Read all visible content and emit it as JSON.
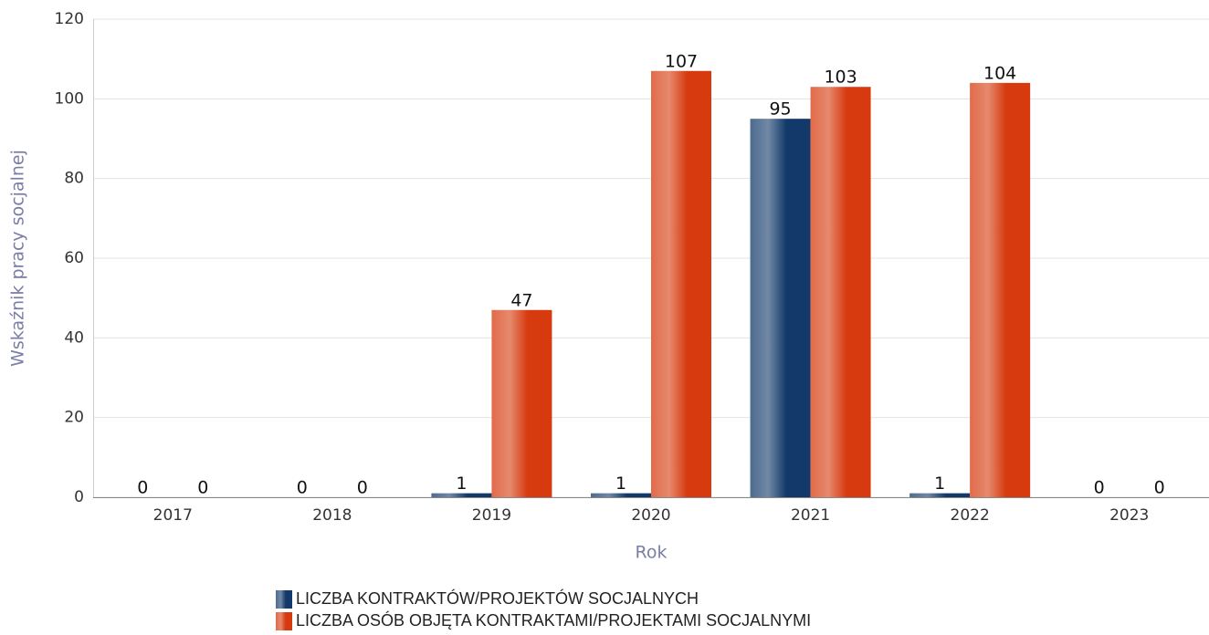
{
  "chart_data": {
    "type": "bar",
    "categories": [
      "2017",
      "2018",
      "2019",
      "2020",
      "2021",
      "2022",
      "2023"
    ],
    "series": [
      {
        "name": "LICZBA KONTRAKTÓW/PROJEKTÓW SOCJALNYCH",
        "color": "#12396a",
        "values": [
          0,
          0,
          1,
          1,
          95,
          1,
          0
        ]
      },
      {
        "name": "LICZBA OSÓB OBJĘTA KONTRAKTAMI/PROJEKTAMI SOCJALNYMI",
        "color": "#d63a0e",
        "values": [
          0,
          0,
          47,
          107,
          103,
          104,
          0
        ]
      }
    ],
    "x_label": "Rok",
    "y_label": "Wskaźnik pracy socjalnej",
    "ylim": [
      0,
      120
    ],
    "yticks": [
      0,
      20,
      40,
      60,
      80,
      100,
      120
    ],
    "grid": true,
    "legend": "bottom"
  }
}
